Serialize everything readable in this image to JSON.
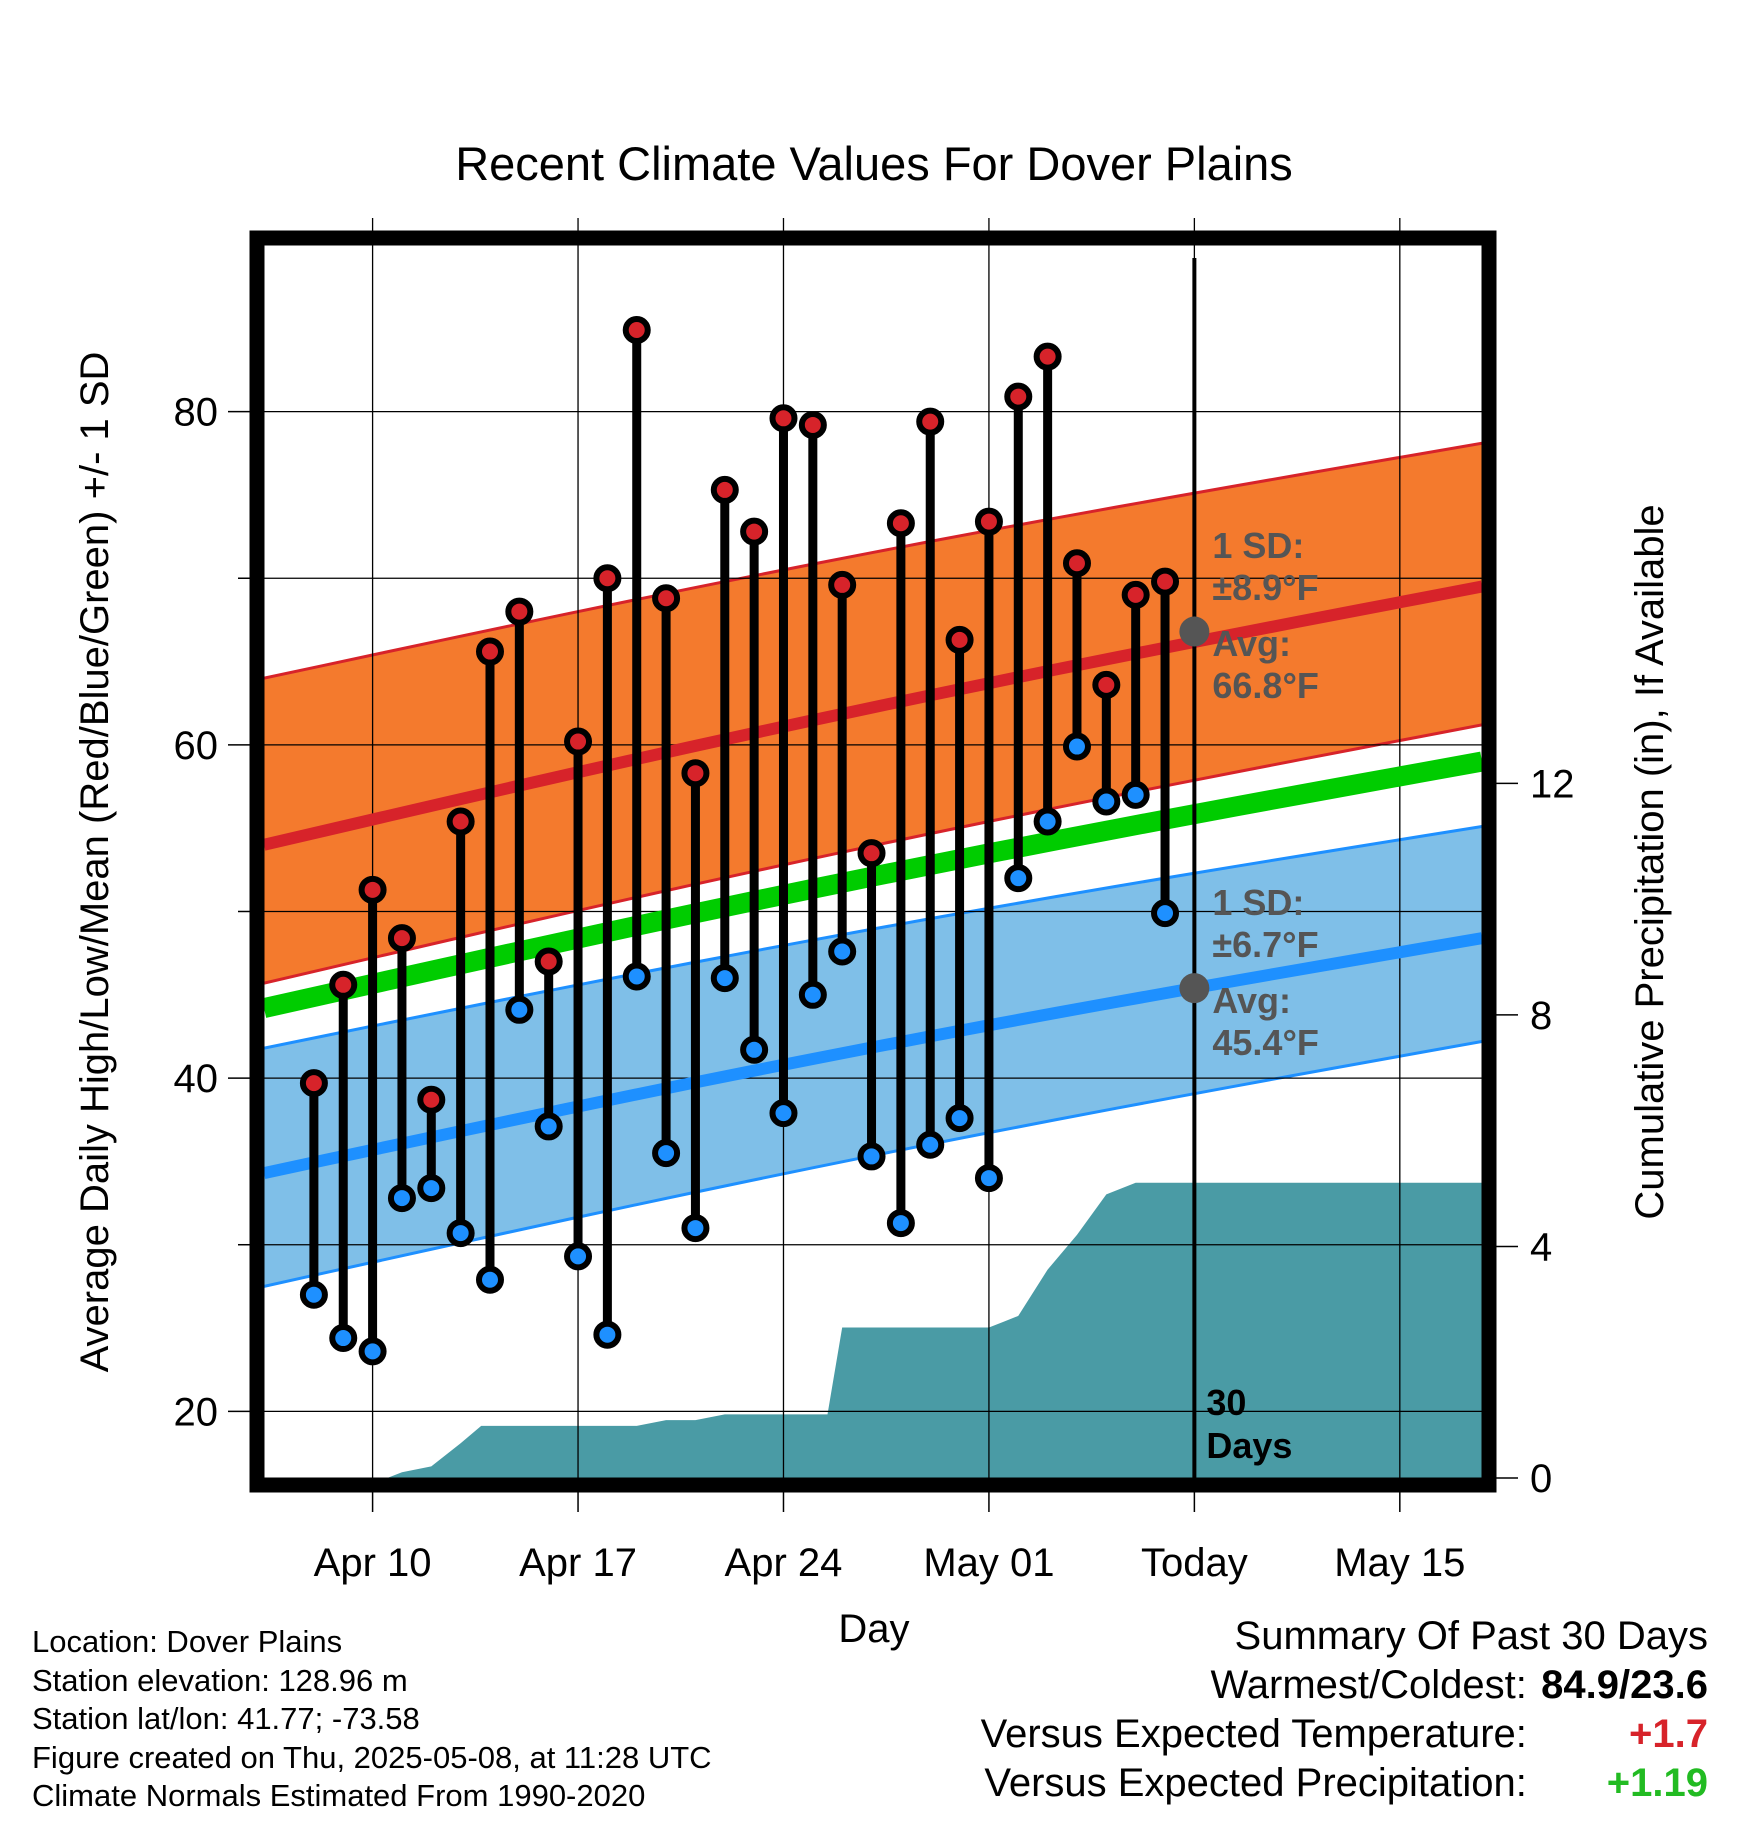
{
  "chart_data": {
    "type": "line",
    "title": "Recent Climate Values For Dover Plains",
    "xlabel": "Day",
    "ylabel": "Average Daily High/Low/Mean (Red/Blue/Green) +/- 1 SD",
    "y2label": "Cumulative Precipitation (in), If Available",
    "ylim": [
      16,
      90
    ],
    "y_ticks": [
      20,
      40,
      60,
      80
    ],
    "y2lim": [
      0,
      21.3
    ],
    "y2_ticks": [
      0,
      4,
      8,
      12
    ],
    "x_day_range": [
      -3.7,
      37.8
    ],
    "x_ticks": [
      {
        "day": 0,
        "label": "Apr 10"
      },
      {
        "day": 7,
        "label": "Apr 17"
      },
      {
        "day": 14,
        "label": "Apr 24"
      },
      {
        "day": 21,
        "label": "May 01"
      },
      {
        "day": 28,
        "label": "Today"
      },
      {
        "day": 35,
        "label": "May 15"
      }
    ],
    "grid": true,
    "daily": [
      {
        "date": "Apr 08",
        "high": 39.7,
        "low": 27.0
      },
      {
        "date": "Apr 09",
        "high": 45.6,
        "low": 24.4
      },
      {
        "date": "Apr 10",
        "high": 51.3,
        "low": 23.6
      },
      {
        "date": "Apr 11",
        "high": 48.4,
        "low": 32.8
      },
      {
        "date": "Apr 12",
        "high": 38.7,
        "low": 33.4
      },
      {
        "date": "Apr 13",
        "high": 55.4,
        "low": 30.7
      },
      {
        "date": "Apr 14",
        "high": 65.6,
        "low": 27.9
      },
      {
        "date": "Apr 15",
        "high": 68.0,
        "low": 44.1
      },
      {
        "date": "Apr 16",
        "high": 47.0,
        "low": 37.1
      },
      {
        "date": "Apr 17",
        "high": 60.2,
        "low": 29.3
      },
      {
        "date": "Apr 18",
        "high": 70.0,
        "low": 24.6
      },
      {
        "date": "Apr 19",
        "high": 84.9,
        "low": 46.1
      },
      {
        "date": "Apr 20",
        "high": 68.8,
        "low": 35.5
      },
      {
        "date": "Apr 21",
        "high": 58.3,
        "low": 31.0
      },
      {
        "date": "Apr 22",
        "high": 75.3,
        "low": 46.0
      },
      {
        "date": "Apr 23",
        "high": 72.8,
        "low": 41.7
      },
      {
        "date": "Apr 24",
        "high": 79.6,
        "low": 37.9
      },
      {
        "date": "Apr 25",
        "high": 79.2,
        "low": 45.0
      },
      {
        "date": "Apr 26",
        "high": 69.6,
        "low": 47.6
      },
      {
        "date": "Apr 27",
        "high": 53.5,
        "low": 35.3
      },
      {
        "date": "Apr 28",
        "high": 73.3,
        "low": 31.3
      },
      {
        "date": "Apr 29",
        "high": 79.4,
        "low": 36.0
      },
      {
        "date": "Apr 30",
        "high": 66.3,
        "low": 37.6
      },
      {
        "date": "May 01",
        "high": 73.4,
        "low": 34.0
      },
      {
        "date": "May 02",
        "high": 80.9,
        "low": 52.0
      },
      {
        "date": "May 03",
        "high": 83.3,
        "low": 55.4
      },
      {
        "date": "May 04",
        "high": 70.9,
        "low": 59.9
      },
      {
        "date": "May 05",
        "high": 63.6,
        "low": 56.6
      },
      {
        "date": "May 06",
        "high": 69.0,
        "low": 57.0
      },
      {
        "date": "May 07",
        "high": 69.8,
        "low": 49.9
      }
    ],
    "normals": {
      "days": [
        -3.7,
        37.8
      ],
      "high_mean": [
        54.0,
        69.5
      ],
      "high_upper": [
        64.0,
        78.1
      ],
      "high_lower": [
        45.7,
        61.2
      ],
      "low_mean": [
        34.3,
        48.4
      ],
      "low_upper": [
        41.8,
        55.1
      ],
      "low_lower": [
        27.5,
        42.2
      ],
      "mean": [
        44.2,
        59.0
      ]
    },
    "precip_cumulative": {
      "days": [
        -3.7,
        -1,
        0,
        0.5,
        1,
        2,
        3,
        3.7,
        4,
        6,
        8,
        9,
        10,
        11,
        12,
        13,
        14,
        15,
        15.5,
        16,
        17,
        18,
        19,
        20,
        21,
        21.5,
        22,
        23,
        24,
        25,
        26,
        27,
        37.8
      ],
      "values": [
        0.0,
        0.0,
        0.0,
        0.0,
        0.1,
        0.2,
        0.6,
        0.9,
        0.9,
        0.9,
        0.9,
        0.9,
        1.0,
        1.0,
        1.1,
        1.1,
        1.1,
        1.1,
        1.1,
        2.6,
        2.6,
        2.6,
        2.6,
        2.6,
        2.6,
        2.7,
        2.8,
        3.6,
        4.2,
        4.9,
        5.1,
        5.1,
        5.1
      ]
    },
    "today_day": 28,
    "today_markers": [
      {
        "label": "high",
        "avg": 66.8
      },
      {
        "label": "low",
        "avg": 45.4
      }
    ],
    "annotations": {
      "high_sd_label": "1 SD:",
      "high_sd_value": "±8.9°F",
      "high_avg_label": "Avg:",
      "high_avg_value": "66.8°F",
      "low_sd_label": "1 SD:",
      "low_sd_value": "±6.7°F",
      "low_avg_label": "Avg:",
      "low_avg_value": "45.4°F",
      "period_number": "30",
      "period_unit": "Days"
    },
    "colors": {
      "high_band": "#f47a2d",
      "high_line": "#d7232a",
      "low_band": "#7fbfe8",
      "low_line": "#1e90ff",
      "mean_line": "#00cc00",
      "precip": "#4a9ba5",
      "high_dot": "#d7232a",
      "low_dot": "#1e90ff",
      "annotation": "#555555"
    }
  },
  "footer": {
    "location": "Location: Dover Plains",
    "elevation": "Station elevation: 128.96 m",
    "latlon": "Station lat/lon: 41.77; -73.58",
    "created": "Figure created on Thu, 2025-05-08, at 11:28 UTC",
    "normals": "Climate Normals Estimated From 1990-2020"
  },
  "summary": {
    "title": "Summary Of Past 30 Days",
    "warm_cold_label": "Warmest/Coldest:",
    "warm_cold_value": "84.9/23.6",
    "temp_label": "Versus Expected Temperature:",
    "temp_value": "+1.7",
    "temp_color": "#d7232a",
    "precip_label": "Versus Expected Precipitation:",
    "precip_value": "+1.19",
    "precip_color": "#22bb22"
  }
}
